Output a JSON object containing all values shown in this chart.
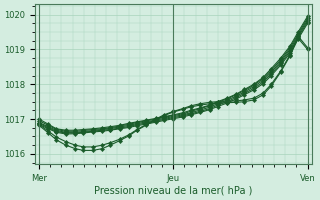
{
  "title": "",
  "xlabel": "Pression niveau de la mer( hPa )",
  "ylabel": "",
  "bg_color": "#d4ede0",
  "grid_color": "#a8d4bc",
  "line_color": "#1a5c2a",
  "ylim": [
    1015.7,
    1020.3
  ],
  "yticks": [
    1016,
    1017,
    1018,
    1019,
    1020
  ],
  "xtick_labels": [
    "Mer",
    "Jeu",
    "Ven"
  ],
  "xlabel_fontsize": 7,
  "tick_fontsize": 6,
  "series": [
    {
      "x": [
        0.0,
        0.07,
        0.13,
        0.2,
        0.27,
        0.33,
        0.4,
        0.47,
        0.53,
        0.6,
        0.67,
        0.73,
        0.8,
        0.87,
        0.93,
        1.0,
        1.07,
        1.13,
        1.2,
        1.27,
        1.33,
        1.4,
        1.47,
        1.53,
        1.6,
        1.67,
        1.73,
        1.8,
        1.87,
        1.93,
        2.0
      ],
      "y": [
        1017.0,
        1016.85,
        1016.72,
        1016.68,
        1016.68,
        1016.7,
        1016.72,
        1016.75,
        1016.78,
        1016.82,
        1016.88,
        1016.92,
        1016.97,
        1017.02,
        1017.07,
        1017.12,
        1017.18,
        1017.25,
        1017.32,
        1017.4,
        1017.5,
        1017.6,
        1017.72,
        1017.85,
        1018.0,
        1018.2,
        1018.45,
        1018.75,
        1019.1,
        1019.5,
        1019.95
      ]
    },
    {
      "x": [
        0.0,
        0.07,
        0.13,
        0.2,
        0.27,
        0.33,
        0.4,
        0.47,
        0.53,
        0.6,
        0.67,
        0.73,
        0.8,
        0.87,
        0.93,
        1.0,
        1.07,
        1.13,
        1.2,
        1.27,
        1.33,
        1.4,
        1.47,
        1.53,
        1.6,
        1.67,
        1.73,
        1.8,
        1.87,
        1.93,
        2.0
      ],
      "y": [
        1016.95,
        1016.82,
        1016.7,
        1016.65,
        1016.65,
        1016.67,
        1016.7,
        1016.72,
        1016.75,
        1016.8,
        1016.85,
        1016.9,
        1016.95,
        1017.0,
        1017.05,
        1017.1,
        1017.15,
        1017.22,
        1017.3,
        1017.38,
        1017.48,
        1017.58,
        1017.7,
        1017.82,
        1017.97,
        1018.17,
        1018.4,
        1018.7,
        1019.05,
        1019.45,
        1019.9
      ]
    },
    {
      "x": [
        0.0,
        0.07,
        0.13,
        0.2,
        0.27,
        0.33,
        0.4,
        0.47,
        0.53,
        0.6,
        0.67,
        0.73,
        0.8,
        0.87,
        0.93,
        1.0,
        1.07,
        1.13,
        1.2,
        1.27,
        1.33,
        1.4,
        1.47,
        1.53,
        1.6,
        1.67,
        1.73,
        1.8,
        1.87,
        1.93,
        2.0
      ],
      "y": [
        1016.9,
        1016.78,
        1016.67,
        1016.62,
        1016.62,
        1016.64,
        1016.67,
        1016.7,
        1016.73,
        1016.77,
        1016.82,
        1016.87,
        1016.92,
        1016.97,
        1017.02,
        1017.07,
        1017.12,
        1017.18,
        1017.26,
        1017.34,
        1017.44,
        1017.54,
        1017.66,
        1017.78,
        1017.93,
        1018.12,
        1018.35,
        1018.65,
        1019.0,
        1019.4,
        1019.85
      ]
    },
    {
      "x": [
        0.0,
        0.07,
        0.13,
        0.2,
        0.27,
        0.33,
        0.4,
        0.47,
        0.53,
        0.6,
        0.67,
        0.73,
        0.8,
        0.87,
        0.93,
        1.0,
        1.07,
        1.13,
        1.2,
        1.27,
        1.33,
        1.4,
        1.47,
        1.53,
        1.6,
        1.67,
        1.73,
        1.8,
        1.87,
        1.93,
        2.0
      ],
      "y": [
        1016.88,
        1016.75,
        1016.64,
        1016.6,
        1016.6,
        1016.62,
        1016.65,
        1016.68,
        1016.7,
        1016.74,
        1016.79,
        1016.84,
        1016.89,
        1016.94,
        1016.99,
        1017.04,
        1017.09,
        1017.15,
        1017.22,
        1017.3,
        1017.4,
        1017.5,
        1017.62,
        1017.74,
        1017.88,
        1018.07,
        1018.3,
        1018.6,
        1018.95,
        1019.35,
        1019.8
      ]
    },
    {
      "x": [
        0.0,
        0.07,
        0.13,
        0.2,
        0.27,
        0.33,
        0.4,
        0.47,
        0.53,
        0.6,
        0.67,
        0.73,
        0.8,
        0.87,
        0.93,
        1.0,
        1.07,
        1.13,
        1.2,
        1.27,
        1.33,
        1.4,
        1.47,
        1.53,
        1.6,
        1.67,
        1.73,
        1.8,
        1.87,
        1.93,
        2.0
      ],
      "y": [
        1016.85,
        1016.72,
        1016.62,
        1016.57,
        1016.58,
        1016.6,
        1016.63,
        1016.65,
        1016.68,
        1016.72,
        1016.76,
        1016.81,
        1016.86,
        1016.91,
        1016.96,
        1017.01,
        1017.06,
        1017.12,
        1017.19,
        1017.27,
        1017.36,
        1017.46,
        1017.58,
        1017.7,
        1017.84,
        1018.02,
        1018.25,
        1018.55,
        1018.9,
        1019.3,
        1019.75
      ]
    },
    {
      "x": [
        0.0,
        0.07,
        0.13,
        0.2,
        0.27,
        0.33,
        0.4,
        0.47,
        0.53,
        0.6,
        0.67,
        0.73,
        0.8,
        0.87,
        0.93,
        1.0,
        1.07,
        1.13,
        1.2,
        1.27,
        1.33,
        1.4,
        1.47,
        1.53,
        1.6,
        1.67,
        1.73,
        1.8,
        1.87,
        1.93,
        2.0
      ],
      "y": [
        1016.85,
        1016.65,
        1016.48,
        1016.35,
        1016.25,
        1016.2,
        1016.2,
        1016.25,
        1016.32,
        1016.42,
        1016.55,
        1016.7,
        1016.85,
        1017.0,
        1017.12,
        1017.22,
        1017.3,
        1017.38,
        1017.44,
        1017.48,
        1017.5,
        1017.52,
        1017.52,
        1017.55,
        1017.6,
        1017.75,
        1018.0,
        1018.38,
        1018.85,
        1019.38,
        1019.05
      ]
    },
    {
      "x": [
        0.0,
        0.07,
        0.13,
        0.2,
        0.27,
        0.33,
        0.4,
        0.47,
        0.53,
        0.6,
        0.67,
        0.73,
        0.8,
        0.87,
        0.93,
        1.0,
        1.07,
        1.13,
        1.2,
        1.27,
        1.33,
        1.4,
        1.47,
        1.53,
        1.6,
        1.67,
        1.73,
        1.8,
        1.87,
        1.93,
        2.0
      ],
      "y": [
        1016.82,
        1016.6,
        1016.4,
        1016.25,
        1016.15,
        1016.1,
        1016.1,
        1016.15,
        1016.25,
        1016.38,
        1016.52,
        1016.68,
        1016.83,
        1016.97,
        1017.1,
        1017.2,
        1017.28,
        1017.35,
        1017.4,
        1017.44,
        1017.46,
        1017.47,
        1017.48,
        1017.5,
        1017.55,
        1017.7,
        1017.95,
        1018.35,
        1018.82,
        1019.32,
        1019.0
      ]
    }
  ]
}
